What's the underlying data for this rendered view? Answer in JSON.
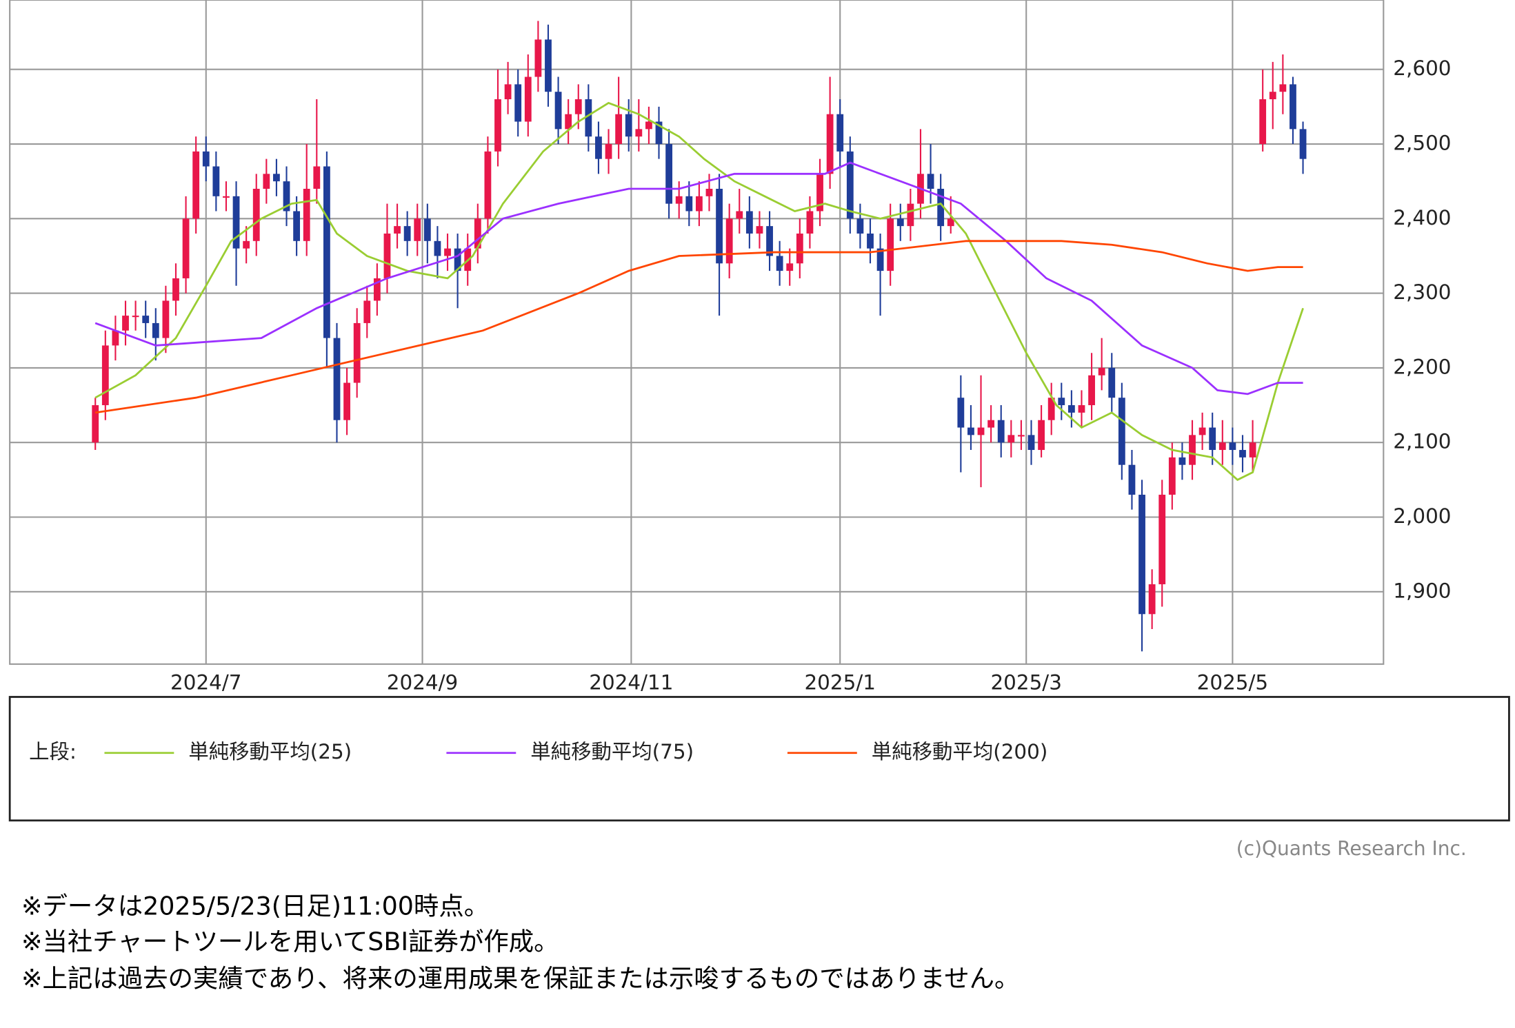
{
  "chart_data": {
    "type": "candlestick",
    "x": [
      0,
      2,
      4,
      6,
      8,
      10,
      12,
      14,
      16,
      18,
      20,
      22,
      24,
      26,
      28,
      30,
      32,
      34,
      36,
      38,
      40,
      42,
      44,
      46,
      48,
      50,
      52,
      54,
      56,
      58,
      60,
      62,
      64,
      66,
      68,
      70,
      72,
      74,
      76,
      78,
      80,
      82,
      84,
      86,
      88,
      90,
      92,
      94,
      96,
      98,
      100,
      102,
      104,
      106,
      108,
      110,
      112,
      114,
      116,
      118,
      120,
      122,
      124,
      126,
      128,
      130,
      132,
      134,
      136,
      138,
      140,
      142,
      144,
      146,
      148,
      150,
      152,
      154,
      156,
      158,
      160,
      162,
      164,
      166,
      168,
      170,
      172,
      174,
      176,
      178,
      180,
      182,
      184,
      186,
      188,
      190,
      192,
      194,
      196,
      198,
      200,
      202,
      204,
      206,
      208,
      210,
      212,
      214,
      216,
      218,
      220,
      222,
      224,
      226,
      228,
      230,
      232,
      234,
      236,
      238,
      240
    ],
    "open": [
      2100,
      2150,
      2230,
      2250,
      2270,
      2270,
      2260,
      2240,
      2290,
      2320,
      2400,
      2490,
      2470,
      2430,
      2430,
      2360,
      2370,
      2440,
      2460,
      2450,
      2410,
      2370,
      2440,
      2470,
      2240,
      2130,
      2180,
      2260,
      2290,
      2320,
      2380,
      2390,
      2370,
      2400,
      2370,
      2350,
      2360,
      2330,
      2360,
      2400,
      2490,
      2560,
      2580,
      2530,
      2590,
      2640,
      2570,
      2520,
      2540,
      2560,
      2510,
      2480,
      2500,
      2540,
      2510,
      2520,
      2530,
      2500,
      2420,
      2430,
      2410,
      2430,
      2440,
      2340,
      2400,
      2410,
      2380,
      2390,
      2350,
      2330,
      2340,
      2380,
      2410,
      2460,
      2540,
      2490,
      2400,
      2380,
      2360,
      2330,
      2400,
      2390,
      2420,
      2460,
      2440,
      2390,
      2160,
      2120,
      2110,
      2120,
      2130,
      2100,
      2110,
      2110,
      2090,
      2130,
      2160,
      2150,
      2140,
      2150,
      2190,
      2200,
      2160,
      2070,
      2030,
      1870,
      1910,
      2030,
      2080,
      2070,
      2110,
      2120,
      2090,
      2100,
      2090,
      2080,
      2500,
      2560,
      2570,
      2580,
      2520
    ],
    "high": [
      2160,
      2250,
      2270,
      2290,
      2290,
      2290,
      2280,
      2310,
      2340,
      2430,
      2510,
      2510,
      2490,
      2450,
      2450,
      2390,
      2460,
      2480,
      2480,
      2470,
      2430,
      2500,
      2560,
      2490,
      2260,
      2200,
      2280,
      2310,
      2340,
      2420,
      2420,
      2410,
      2420,
      2420,
      2390,
      2380,
      2380,
      2380,
      2420,
      2510,
      2600,
      2610,
      2600,
      2620,
      2665,
      2660,
      2590,
      2560,
      2580,
      2580,
      2530,
      2520,
      2590,
      2560,
      2560,
      2550,
      2550,
      2520,
      2450,
      2450,
      2450,
      2460,
      2460,
      2420,
      2440,
      2430,
      2410,
      2410,
      2370,
      2360,
      2400,
      2430,
      2480,
      2590,
      2560,
      2510,
      2420,
      2400,
      2380,
      2420,
      2420,
      2440,
      2520,
      2500,
      2460,
      2430,
      2190,
      2150,
      2190,
      2150,
      2150,
      2130,
      2130,
      2130,
      2150,
      2180,
      2180,
      2170,
      2170,
      2220,
      2240,
      2220,
      2180,
      2090,
      2050,
      1930,
      2050,
      2100,
      2100,
      2130,
      2140,
      2140,
      2130,
      2120,
      2110,
      2130,
      2600,
      2610,
      2620,
      2590,
      2530
    ],
    "low": [
      2090,
      2130,
      2210,
      2230,
      2250,
      2240,
      2210,
      2220,
      2270,
      2300,
      2380,
      2450,
      2410,
      2410,
      2310,
      2340,
      2350,
      2420,
      2430,
      2390,
      2350,
      2350,
      2420,
      2200,
      2100,
      2110,
      2160,
      2240,
      2270,
      2300,
      2360,
      2350,
      2350,
      2340,
      2320,
      2330,
      2280,
      2310,
      2340,
      2380,
      2470,
      2540,
      2510,
      2510,
      2570,
      2550,
      2500,
      2500,
      2520,
      2490,
      2460,
      2460,
      2480,
      2490,
      2490,
      2500,
      2480,
      2400,
      2400,
      2390,
      2390,
      2410,
      2270,
      2320,
      2380,
      2360,
      2360,
      2330,
      2310,
      2310,
      2320,
      2360,
      2390,
      2440,
      2470,
      2380,
      2360,
      2340,
      2270,
      2310,
      2370,
      2370,
      2400,
      2420,
      2370,
      2380,
      2060,
      2090,
      2040,
      2100,
      2080,
      2080,
      2090,
      2070,
      2080,
      2110,
      2130,
      2120,
      2120,
      2130,
      2170,
      2140,
      2050,
      2010,
      1820,
      1850,
      1880,
      2010,
      2050,
      2050,
      2090,
      2070,
      2070,
      2070,
      2060,
      2060,
      2490,
      2520,
      2540,
      2500,
      2460
    ],
    "close": [
      2150,
      2230,
      2250,
      2270,
      2270,
      2260,
      2240,
      2290,
      2320,
      2400,
      2490,
      2470,
      2430,
      2430,
      2360,
      2370,
      2440,
      2460,
      2450,
      2410,
      2370,
      2440,
      2470,
      2240,
      2130,
      2180,
      2260,
      2290,
      2320,
      2380,
      2390,
      2370,
      2400,
      2370,
      2350,
      2360,
      2330,
      2360,
      2400,
      2490,
      2560,
      2580,
      2530,
      2590,
      2640,
      2570,
      2520,
      2540,
      2560,
      2510,
      2480,
      2500,
      2540,
      2510,
      2520,
      2530,
      2500,
      2420,
      2430,
      2410,
      2430,
      2440,
      2340,
      2400,
      2410,
      2380,
      2390,
      2350,
      2330,
      2340,
      2380,
      2410,
      2460,
      2540,
      2490,
      2400,
      2380,
      2360,
      2330,
      2400,
      2390,
      2420,
      2460,
      2440,
      2390,
      2400,
      2120,
      2110,
      2120,
      2130,
      2100,
      2110,
      2110,
      2090,
      2130,
      2160,
      2150,
      2140,
      2150,
      2190,
      2200,
      2160,
      2070,
      2030,
      1870,
      1910,
      2030,
      2080,
      2070,
      2110,
      2120,
      2090,
      2100,
      2090,
      2080,
      2100,
      2560,
      2570,
      2580,
      2520,
      2480
    ],
    "up_color": "#e8174a",
    "down_color": "#1f3d99",
    "xlim": [
      -17,
      256
    ],
    "ylim": [
      1803,
      2693
    ],
    "xticks": [
      {
        "value": 22,
        "label": "2024/7"
      },
      {
        "value": 65,
        "label": "2024/9"
      },
      {
        "value": 106.5,
        "label": "2024/11"
      },
      {
        "value": 148,
        "label": "2025/1"
      },
      {
        "value": 185,
        "label": "2025/3"
      },
      {
        "value": 226,
        "label": "2025/5"
      }
    ],
    "yticks": [
      {
        "value": 1900,
        "label": "1,900"
      },
      {
        "value": 2000,
        "label": "2,000"
      },
      {
        "value": 2100,
        "label": "2,100"
      },
      {
        "value": 2200,
        "label": "2,200"
      },
      {
        "value": 2300,
        "label": "2,300"
      },
      {
        "value": 2400,
        "label": "2,400"
      },
      {
        "value": 2500,
        "label": "2,500"
      },
      {
        "value": 2600,
        "label": "2,600"
      }
    ],
    "grid": true,
    "legend_prefix": "上段:",
    "series": [
      {
        "name": "単純移動平均(25)",
        "color": "#9acd32",
        "x": [
          0,
          8,
          16,
          22,
          27,
          33,
          39,
          44,
          48,
          54,
          62,
          70,
          75,
          81,
          89,
          96,
          102,
          108,
          116,
          121,
          127,
          133,
          139,
          145,
          150,
          156,
          162,
          168,
          173,
          179,
          185,
          191,
          196,
          202,
          208,
          214,
          222,
          227,
          230,
          235,
          240
        ],
        "values": [
          2160,
          2190,
          2240,
          2310,
          2370,
          2400,
          2420,
          2425,
          2380,
          2350,
          2330,
          2320,
          2350,
          2420,
          2490,
          2530,
          2555,
          2540,
          2510,
          2480,
          2450,
          2430,
          2410,
          2420,
          2410,
          2400,
          2410,
          2420,
          2380,
          2300,
          2220,
          2150,
          2120,
          2140,
          2110,
          2090,
          2080,
          2050,
          2060,
          2180,
          2280
        ]
      },
      {
        "name": "単純移動平均(75)",
        "color": "#9b30ff",
        "x": [
          0,
          12,
          33,
          44,
          58,
          72,
          81,
          92,
          106,
          116,
          127,
          145,
          150,
          160,
          172,
          181,
          189,
          198,
          208,
          218,
          223,
          229,
          235,
          240
        ],
        "values": [
          2260,
          2230,
          2240,
          2280,
          2320,
          2350,
          2400,
          2420,
          2440,
          2440,
          2460,
          2460,
          2475,
          2450,
          2420,
          2370,
          2320,
          2290,
          2230,
          2200,
          2170,
          2165,
          2180,
          2180
        ]
      },
      {
        "name": "単純移動平均(200)",
        "color": "#ff4500",
        "x": [
          0,
          20,
          39,
          58,
          77,
          96,
          106,
          116,
          135,
          154,
          173,
          192,
          202,
          212,
          221,
          229,
          235,
          240
        ],
        "values": [
          2140,
          2160,
          2190,
          2220,
          2250,
          2300,
          2330,
          2350,
          2355,
          2355,
          2370,
          2370,
          2365,
          2355,
          2340,
          2330,
          2335,
          2335
        ]
      }
    ]
  },
  "credit": "(c)Quants Research Inc.",
  "notes": [
    "※データは2025/5/23(日足)11:00時点。",
    "※当社チャートツールを用いてSBI証券が作成。",
    "※上記は過去の実績であり、将来の運用成果を保証または示唆するものではありません。"
  ]
}
